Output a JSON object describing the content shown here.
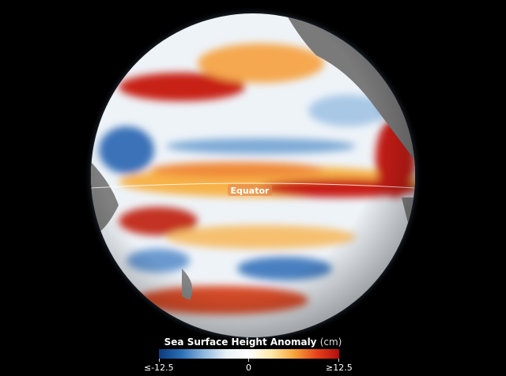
{
  "map": {
    "equator_label": "Equator",
    "projection": "orthographic globe centered on Pacific Ocean"
  },
  "legend": {
    "title": "Sea Surface Height Anomaly",
    "unit": "(cm)",
    "min_label": "≤-12.5",
    "mid_label": "0",
    "max_label": "≥12.5",
    "range": [
      -12.5,
      12.5
    ],
    "colors": {
      "low": "#0b3a7a",
      "mid": "#ffffff",
      "high": "#b00d0f"
    }
  }
}
